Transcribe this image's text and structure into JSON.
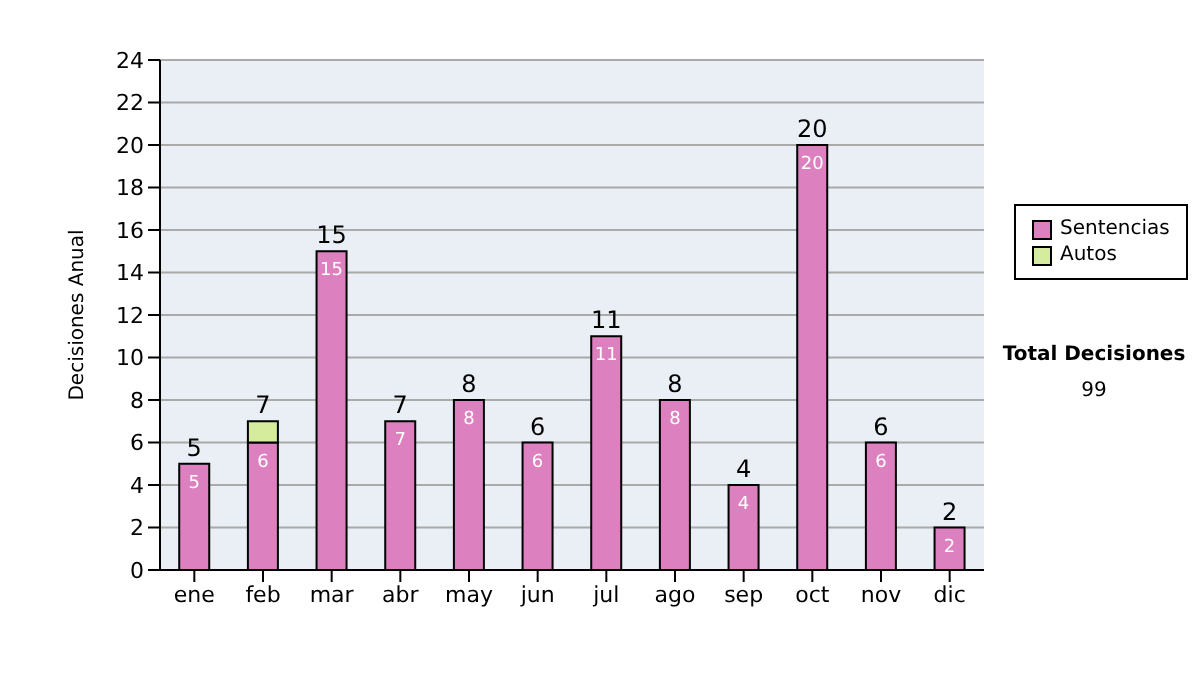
{
  "chart_data": {
    "type": "bar",
    "stacked": true,
    "ylabel": "Decisiones Anual",
    "categories": [
      "ene",
      "feb",
      "mar",
      "abr",
      "may",
      "jun",
      "jul",
      "ago",
      "sep",
      "oct",
      "nov",
      "dic"
    ],
    "series": [
      {
        "name": "Sentencias",
        "color": "#dd80c0",
        "values": [
          5,
          6,
          15,
          7,
          8,
          6,
          11,
          8,
          4,
          20,
          6,
          2
        ],
        "value_labels": [
          "5",
          "6",
          "15",
          "7",
          "8",
          "6",
          "11",
          "8",
          "4",
          "20",
          "6",
          "2"
        ]
      },
      {
        "name": "Autos",
        "color": "#d4ec9c",
        "values": [
          0,
          1,
          0,
          0,
          0,
          0,
          0,
          0,
          0,
          0,
          0,
          0
        ],
        "value_labels": [
          null,
          null,
          null,
          null,
          null,
          null,
          null,
          null,
          null,
          null,
          null,
          null
        ]
      }
    ],
    "totals": [
      "5",
      "7",
      "15",
      "7",
      "8",
      "6",
      "11",
      "8",
      "4",
      "20",
      "6",
      "2"
    ],
    "ylim": [
      0,
      24
    ],
    "yticks": [
      0,
      2,
      4,
      6,
      8,
      10,
      12,
      14,
      16,
      18,
      20,
      22,
      24
    ],
    "grid": "y",
    "legend": "right",
    "annotations": [
      "Total Decisiones",
      "99"
    ]
  }
}
